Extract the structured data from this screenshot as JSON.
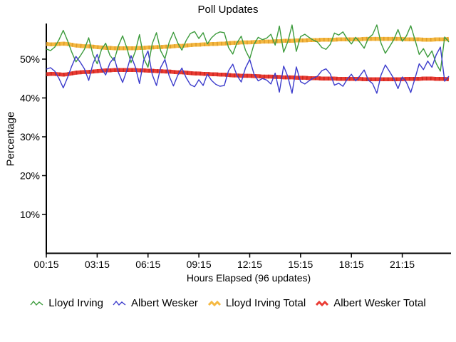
{
  "title": "Poll Updates",
  "chart_data": {
    "type": "line",
    "title": "Poll Updates",
    "xlabel": "Hours Elapsed (96 updates)",
    "ylabel": "Percentage",
    "x_tick_labels": [
      "00:15",
      "03:15",
      "06:15",
      "09:15",
      "12:15",
      "15:15",
      "18:15",
      "21:15"
    ],
    "x_tick_indices": [
      1,
      13,
      25,
      37,
      49,
      61,
      73,
      85
    ],
    "y_tick_labels": [
      "10%",
      "20%",
      "30%",
      "40%",
      "50%"
    ],
    "y_ticks": [
      10,
      20,
      30,
      40,
      50
    ],
    "xlim": [
      1,
      96
    ],
    "ylim": [
      0,
      58.8
    ],
    "grid": false,
    "legend_position": "bottom",
    "axis_color": "#000000",
    "series": [
      {
        "name": "Lloyd Irving",
        "color": "#3d9b3d",
        "style": "thin",
        "values": [
          52.6,
          52.2,
          53.1,
          55.0,
          57.4,
          54.8,
          51.8,
          49.3,
          50.8,
          52.5,
          55.5,
          51.2,
          48.8,
          52.4,
          54.1,
          51.0,
          49.6,
          53.4,
          56.0,
          52.9,
          49.1,
          52.0,
          56.3,
          50.2,
          47.9,
          54.0,
          56.8,
          52.1,
          50.1,
          54.4,
          56.9,
          54.2,
          52.3,
          54.8,
          56.6,
          57.1,
          55.3,
          56.8,
          53.9,
          55.5,
          56.5,
          57.0,
          56.8,
          53.0,
          51.3,
          54.2,
          55.9,
          52.3,
          50.1,
          53.8,
          55.6,
          55.0,
          55.4,
          56.4,
          53.6,
          58.5,
          51.8,
          54.5,
          58.8,
          52.0,
          55.8,
          56.4,
          55.6,
          54.9,
          54.4,
          53.0,
          52.5,
          53.8,
          56.7,
          56.2,
          57.0,
          55.2,
          53.9,
          55.6,
          54.3,
          52.8,
          55.4,
          56.3,
          58.8,
          54.1,
          51.5,
          53.2,
          55.0,
          57.6,
          54.6,
          56.0,
          58.6,
          55.0,
          51.2,
          52.7,
          50.5,
          52.1,
          48.9,
          46.9,
          55.7,
          54.4
        ]
      },
      {
        "name": "Albert Wesker",
        "color": "#3c3ccc",
        "style": "thin",
        "values": [
          47.4,
          47.8,
          46.9,
          45.0,
          42.6,
          45.2,
          48.2,
          50.7,
          49.2,
          47.5,
          44.5,
          48.8,
          51.2,
          47.6,
          45.9,
          49.0,
          50.4,
          46.6,
          44.0,
          47.1,
          50.9,
          48.0,
          43.7,
          49.8,
          52.1,
          46.0,
          43.2,
          47.9,
          49.9,
          45.6,
          43.1,
          45.8,
          47.7,
          45.2,
          43.4,
          42.9,
          44.7,
          43.2,
          46.1,
          44.5,
          43.5,
          43.0,
          43.2,
          47.0,
          48.7,
          45.8,
          44.1,
          47.7,
          49.9,
          46.2,
          44.4,
          45.0,
          44.6,
          43.6,
          46.4,
          41.5,
          48.2,
          45.5,
          41.2,
          48.0,
          44.2,
          43.6,
          44.4,
          45.1,
          45.6,
          47.0,
          47.5,
          46.2,
          43.3,
          43.8,
          43.0,
          44.8,
          46.1,
          44.4,
          45.7,
          47.2,
          44.6,
          43.7,
          41.2,
          45.9,
          48.5,
          46.8,
          45.0,
          42.4,
          45.4,
          44.0,
          41.4,
          45.0,
          48.8,
          47.3,
          49.5,
          47.9,
          51.1,
          53.1,
          44.3,
          45.6
        ]
      },
      {
        "name": "Lloyd Irving Total",
        "color": "#f5b942",
        "overlay_color": "#dd9c2b",
        "style": "thick",
        "values": [
          53.9,
          53.8,
          53.8,
          53.9,
          54.0,
          53.9,
          53.7,
          53.5,
          53.4,
          53.3,
          53.3,
          53.2,
          53.1,
          53.0,
          52.9,
          52.9,
          52.8,
          52.8,
          52.8,
          52.8,
          52.8,
          52.8,
          52.9,
          52.9,
          53.0,
          53.0,
          53.1,
          53.1,
          53.2,
          53.2,
          53.3,
          53.4,
          53.4,
          53.5,
          53.6,
          53.7,
          53.7,
          53.8,
          53.8,
          53.9,
          53.9,
          54.0,
          54.0,
          54.1,
          54.2,
          54.2,
          54.3,
          54.3,
          54.3,
          54.4,
          54.4,
          54.5,
          54.5,
          54.5,
          54.6,
          54.6,
          54.7,
          54.7,
          54.7,
          54.8,
          54.8,
          54.8,
          54.9,
          54.9,
          54.9,
          55.0,
          55.0,
          55.0,
          55.0,
          55.1,
          55.1,
          55.1,
          55.1,
          55.1,
          55.1,
          55.2,
          55.2,
          55.2,
          55.2,
          55.2,
          55.2,
          55.2,
          55.2,
          55.2,
          55.2,
          55.1,
          55.1,
          55.1,
          55.1,
          55.0,
          55.0,
          55.0,
          55.1,
          55.1,
          55.1,
          55.2
        ]
      },
      {
        "name": "Albert Wesker Total",
        "color": "#ea3c34",
        "overlay_color": "#c8281f",
        "style": "thick",
        "values": [
          46.1,
          46.2,
          46.2,
          46.1,
          46.0,
          46.1,
          46.3,
          46.5,
          46.6,
          46.7,
          46.7,
          46.8,
          46.9,
          47.0,
          47.1,
          47.1,
          47.2,
          47.2,
          47.2,
          47.2,
          47.2,
          47.2,
          47.1,
          47.1,
          47.0,
          47.0,
          46.9,
          46.9,
          46.8,
          46.8,
          46.7,
          46.6,
          46.6,
          46.5,
          46.4,
          46.3,
          46.3,
          46.2,
          46.2,
          46.1,
          46.1,
          46.0,
          46.0,
          45.9,
          45.8,
          45.8,
          45.7,
          45.7,
          45.7,
          45.6,
          45.6,
          45.5,
          45.5,
          45.5,
          45.4,
          45.4,
          45.3,
          45.3,
          45.3,
          45.2,
          45.2,
          45.2,
          45.1,
          45.1,
          45.1,
          45.0,
          45.0,
          45.0,
          45.0,
          44.9,
          44.9,
          44.9,
          44.9,
          44.9,
          44.9,
          44.8,
          44.8,
          44.8,
          44.8,
          44.8,
          44.8,
          44.8,
          44.8,
          44.8,
          44.8,
          44.9,
          44.9,
          44.9,
          44.9,
          45.0,
          45.0,
          45.0,
          44.9,
          44.9,
          44.9,
          44.8
        ]
      }
    ]
  }
}
